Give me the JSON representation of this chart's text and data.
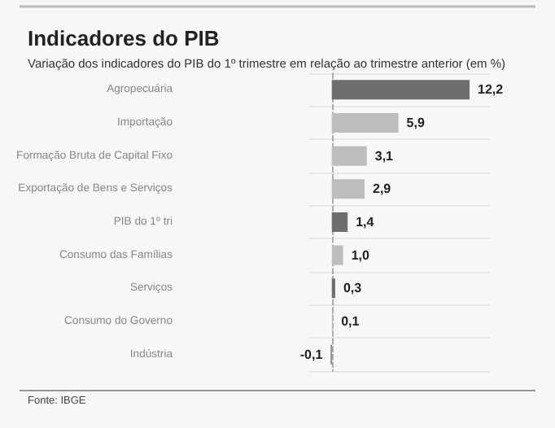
{
  "chart_data": {
    "type": "bar",
    "orientation": "horizontal",
    "title": "Indicadores do PIB",
    "subtitle": "Variação dos indicadores do PIB do 1º trimestre em relação ao trimestre anterior (em %)",
    "categories": [
      "Agropecuária",
      "Importação",
      "Formação Bruta de Capital Fixo",
      "Exportação de Bens e Serviços",
      "PIB do 1º tri",
      "Consumo das Famílias",
      "Serviços",
      "Consumo do Governo",
      "Indústria"
    ],
    "values": [
      12.2,
      5.9,
      3.1,
      2.9,
      1.4,
      1.0,
      0.3,
      0.1,
      -0.1
    ],
    "colors": [
      "#6e6e6e",
      "#bdbdbd",
      "#bdbdbd",
      "#bdbdbd",
      "#6e6e6e",
      "#bdbdbd",
      "#6e6e6e",
      "#bdbdbd",
      "#6e6e6e"
    ],
    "value_labels": [
      "12,2",
      "5,9",
      "3,1",
      "2,9",
      "1,4",
      "1,0",
      "0,3",
      "0,1",
      "-0,1"
    ],
    "grid": "y",
    "annotations": [
      "Fonte: IBGE"
    ]
  }
}
